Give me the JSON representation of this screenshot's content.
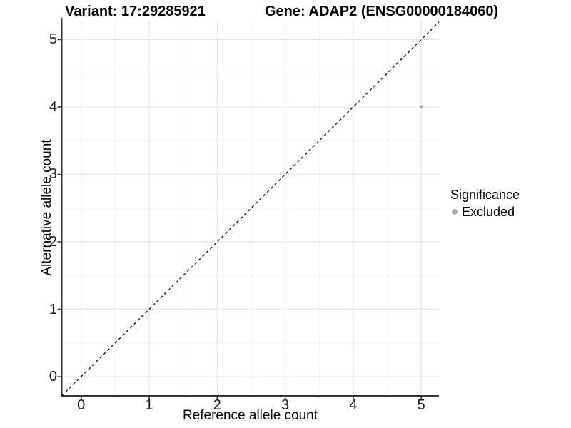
{
  "titles": {
    "left": "Variant: 17:29285921",
    "right": "Gene: ADAP2 (ENSG00000184060)"
  },
  "chart_data": {
    "type": "scatter",
    "title": "Variant: 17:29285921 / Gene: ADAP2 (ENSG00000184060)",
    "xlabel": "Reference allele count",
    "ylabel": "Alternative allele count",
    "xlim": [
      -0.285,
      5.26
    ],
    "ylim": [
      -0.285,
      5.29
    ],
    "xticks": [
      "0",
      "1",
      "2",
      "3",
      "4",
      "5"
    ],
    "yticks": [
      "0",
      "1",
      "2",
      "3",
      "4",
      "5"
    ],
    "xtick_values": [
      0,
      1,
      2,
      3,
      4,
      5
    ],
    "ytick_values": [
      0,
      1,
      2,
      3,
      4,
      5
    ],
    "grid": {
      "major": true,
      "minor": true
    },
    "series": [
      {
        "name": "Excluded",
        "color": "#b3b3b3",
        "points": [
          {
            "x": 5,
            "y": 4
          }
        ]
      }
    ],
    "reference_line": {
      "kind": "identity y=x",
      "style": "dashed",
      "color": "#000000",
      "from": [
        -0.285,
        -0.285
      ],
      "to": [
        5.26,
        5.26
      ]
    },
    "legend": {
      "title": "Significance",
      "position": "right-center",
      "entries": [
        {
          "label": "Excluded",
          "marker_color": "#a9a9a9"
        }
      ]
    }
  },
  "colors": {
    "background": "#ffffff",
    "axis_line": "#333333",
    "tick_mark": "#333333",
    "grid_major": "#e4e4e4",
    "grid_minor": "#f1f1f1",
    "tick_label": "#1a1a1a",
    "point": "#b3b3b3"
  }
}
